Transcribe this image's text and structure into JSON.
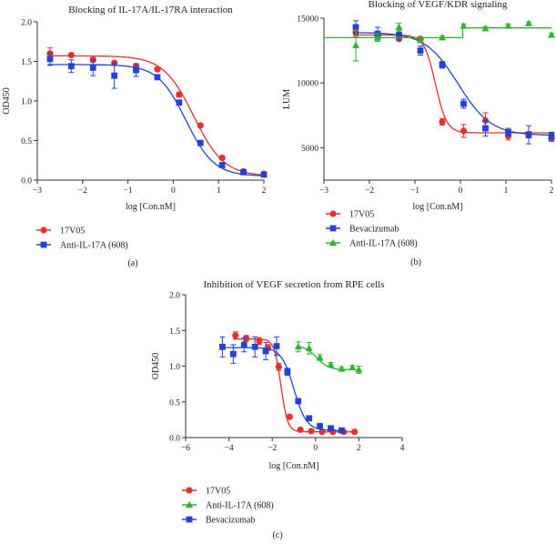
{
  "colors": {
    "red": "#e8302a",
    "blue": "#2243d6",
    "green": "#2cb52c",
    "axis": "#333333"
  },
  "chart_data": [
    {
      "type": "line",
      "panel_label": "(a)",
      "title": "Blocking of IL-17A/IL-17RA interaction",
      "xlabel": "log [Con.nM]",
      "ylabel": "OD450",
      "xlim": [
        -3,
        2
      ],
      "ylim": [
        0,
        2
      ],
      "xticks": [
        -3,
        -2,
        -1,
        0,
        1,
        2
      ],
      "yticks": [
        0.0,
        0.5,
        1.0,
        1.5,
        2.0
      ],
      "ytick_labels": [
        "0.0",
        "0.5",
        "1.0",
        "1.5",
        "2.0"
      ],
      "series": [
        {
          "name": "17V05",
          "color": "red",
          "marker": "circle",
          "x": [
            -2.72,
            -2.25,
            -1.77,
            -1.3,
            -0.82,
            -0.35,
            0.13,
            0.6,
            1.08,
            1.55,
            2.0
          ],
          "y": [
            1.6,
            1.58,
            1.52,
            1.48,
            1.44,
            1.4,
            1.08,
            0.69,
            0.28,
            0.11,
            0.08
          ],
          "err": [
            0.07,
            0.02,
            0.03,
            0.02,
            0.03,
            0.02,
            0.03,
            0.02,
            0.02,
            0.01,
            0.01
          ],
          "fit": {
            "top": 1.57,
            "bottom": 0.05,
            "ec50": 0.45,
            "hill": 1.3
          }
        },
        {
          "name": "Anti-IL-17A (608)",
          "color": "blue",
          "marker": "square",
          "x": [
            -2.72,
            -2.25,
            -1.77,
            -1.3,
            -0.82,
            -0.35,
            0.13,
            0.6,
            1.08,
            1.55,
            2.0
          ],
          "y": [
            1.53,
            1.44,
            1.42,
            1.32,
            1.39,
            1.3,
            0.98,
            0.47,
            0.19,
            0.1,
            0.07
          ],
          "err": [
            0.08,
            0.08,
            0.1,
            0.16,
            0.08,
            0.03,
            0.03,
            0.02,
            0.02,
            0.01,
            0.01
          ],
          "fit": {
            "top": 1.46,
            "bottom": 0.05,
            "ec50": 0.28,
            "hill": 1.4
          }
        }
      ]
    },
    {
      "type": "line",
      "panel_label": "(b)",
      "title": "Blocking of VEGF/KDR signaling",
      "xlabel": "log [Con.nM]",
      "ylabel": "LUM",
      "xlim": [
        -3,
        2
      ],
      "ylim": [
        2500,
        15000
      ],
      "xticks": [
        -3,
        -2,
        -1,
        0,
        1,
        2
      ],
      "yticks": [
        5000,
        10000,
        15000
      ],
      "ytick_labels": [
        "5000",
        "10000",
        "15000"
      ],
      "series": [
        {
          "name": "17V05",
          "color": "red",
          "marker": "circle",
          "x": [
            -2.3,
            -1.82,
            -1.35,
            -0.88,
            -0.4,
            0.07,
            0.55,
            1.05,
            1.5,
            2.0
          ],
          "y": [
            13900,
            13700,
            13400,
            13400,
            7000,
            6300,
            7100,
            5900,
            6000,
            5700
          ],
          "err": [
            300,
            200,
            150,
            150,
            250,
            500,
            600,
            300,
            250,
            200
          ],
          "fit": {
            "top": 13700,
            "bottom": 6150,
            "ec50": -0.55,
            "hill": 3.5
          }
        },
        {
          "name": "Bevacizumab",
          "color": "blue",
          "marker": "square",
          "x": [
            -2.3,
            -1.82,
            -1.35,
            -0.88,
            -0.4,
            0.07,
            0.55,
            1.05,
            1.5,
            2.0
          ],
          "y": [
            14300,
            13800,
            13700,
            12500,
            11400,
            8400,
            6500,
            6200,
            6000,
            5900
          ],
          "err": [
            500,
            500,
            400,
            350,
            250,
            350,
            600,
            300,
            700,
            300
          ],
          "fit": {
            "top": 13900,
            "bottom": 5950,
            "ec50": -0.05,
            "hill": 1.2
          }
        },
        {
          "name": "Anti-IL-17A (608)",
          "color": "green",
          "marker": "triangle",
          "x": [
            -2.3,
            -1.82,
            -1.35,
            -0.88,
            -0.4,
            0.07,
            0.55,
            1.05,
            1.5,
            2.0
          ],
          "y": [
            12900,
            13500,
            14300,
            13300,
            13500,
            14400,
            14200,
            14400,
            14600,
            13700
          ],
          "err": [
            1200,
            300,
            300,
            200,
            150,
            150,
            150,
            150,
            100,
            150
          ],
          "fit": {
            "type": "step",
            "x_step": 0.05,
            "before": 13500,
            "after": 14250
          }
        }
      ]
    },
    {
      "type": "line",
      "panel_label": "(c)",
      "title": "Inhibition of VEGF secretion from RPE cells",
      "xlabel": "log [Con.nM]",
      "ylabel": "OD450",
      "xlim": [
        -6,
        4
      ],
      "ylim": [
        0,
        2
      ],
      "xticks": [
        -6,
        -4,
        -2,
        0,
        2,
        4
      ],
      "yticks": [
        0.0,
        0.5,
        1.0,
        1.5,
        2.0
      ],
      "ytick_labels": [
        "0.0",
        "0.5",
        "1.0",
        "1.5",
        "2.0"
      ],
      "series": [
        {
          "name": "17V05",
          "color": "red",
          "marker": "circle",
          "x": [
            -3.7,
            -3.2,
            -2.6,
            -2.2,
            -1.7,
            -1.2,
            -0.7,
            -0.2,
            0.3,
            0.8,
            1.3,
            1.8
          ],
          "y": [
            1.43,
            1.39,
            1.35,
            1.26,
            0.99,
            0.29,
            0.11,
            0.09,
            0.08,
            0.08,
            0.08,
            0.08
          ],
          "err": [
            0.05,
            0.04,
            0.05,
            0.04,
            0.05,
            0.03,
            0.01,
            0.01,
            0.01,
            0.01,
            0.01,
            0.01
          ],
          "fit": {
            "top": 1.38,
            "bottom": 0.08,
            "ec50": -1.6,
            "hill": 2.8
          }
        },
        {
          "name": "Anti-IL-17A (608)",
          "color": "green",
          "marker": "triangle",
          "x": [
            -0.8,
            -0.3,
            0.2,
            0.7,
            1.2,
            1.7,
            2.0
          ],
          "y": [
            1.27,
            1.25,
            1.12,
            1.02,
            0.96,
            0.98,
            0.95
          ],
          "err": [
            0.07,
            0.08,
            0.04,
            0.03,
            0.03,
            0.03,
            0.05
          ],
          "fit": {
            "top": 1.29,
            "bottom": 0.95,
            "ec50": 0.05,
            "hill": 1.6
          }
        },
        {
          "name": "Bevacizumab",
          "color": "blue",
          "marker": "square",
          "x": [
            -4.3,
            -3.8,
            -3.3,
            -2.8,
            -2.3,
            -1.8,
            -1.3,
            -0.8,
            -0.3,
            0.2,
            0.7,
            1.2
          ],
          "y": [
            1.27,
            1.17,
            1.3,
            1.27,
            1.21,
            1.28,
            0.92,
            0.51,
            0.27,
            0.16,
            0.13,
            0.1
          ],
          "err": [
            0.14,
            0.13,
            0.1,
            0.14,
            0.12,
            0.13,
            0.05,
            0.03,
            0.03,
            0.02,
            0.01,
            0.01
          ],
          "fit": {
            "top": 1.26,
            "bottom": 0.1,
            "ec50": -1.0,
            "hill": 1.5
          }
        }
      ]
    }
  ]
}
